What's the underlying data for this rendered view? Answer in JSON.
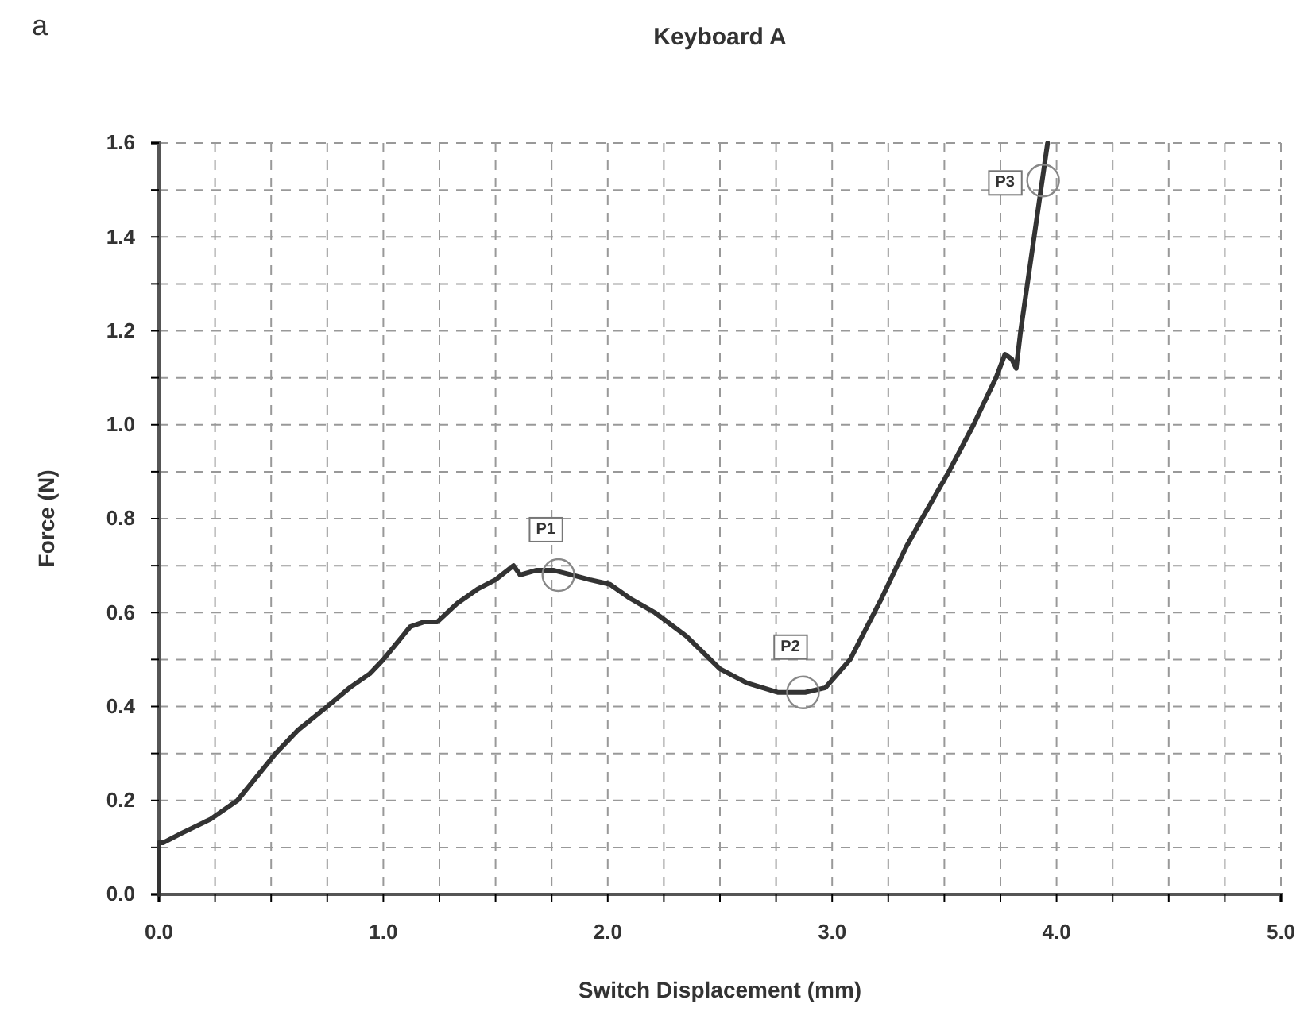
{
  "chart_data": {
    "type": "line",
    "title": "Keyboard A",
    "xlabel": "Switch Displacement (mm)",
    "ylabel": "Force (N)",
    "xlim": [
      0,
      5
    ],
    "ylim": [
      0,
      1.6
    ],
    "xticks": [
      {
        "value": 0,
        "label": "0.0"
      },
      {
        "value": 0.25,
        "label": null
      },
      {
        "value": 0.5,
        "label": null
      },
      {
        "value": 0.75,
        "label": null
      },
      {
        "value": 1,
        "label": "1.0"
      },
      {
        "value": 1.25,
        "label": null
      },
      {
        "value": 1.5,
        "label": null
      },
      {
        "value": 1.75,
        "label": null
      },
      {
        "value": 2,
        "label": "2.0"
      },
      {
        "value": 2.25,
        "label": null
      },
      {
        "value": 2.5,
        "label": null
      },
      {
        "value": 2.75,
        "label": null
      },
      {
        "value": 3,
        "label": "3.0"
      },
      {
        "value": 3.25,
        "label": null
      },
      {
        "value": 3.5,
        "label": null
      },
      {
        "value": 3.75,
        "label": null
      },
      {
        "value": 4,
        "label": "4.0"
      },
      {
        "value": 4.25,
        "label": null
      },
      {
        "value": 4.5,
        "label": null
      },
      {
        "value": 4.75,
        "label": null
      },
      {
        "value": 5,
        "label": "5.0"
      }
    ],
    "yticks": [
      {
        "value": 0,
        "label": "0.0"
      },
      {
        "value": 0.1,
        "label": null
      },
      {
        "value": 0.2,
        "label": "0.2"
      },
      {
        "value": 0.3,
        "label": null
      },
      {
        "value": 0.4,
        "label": "0.4"
      },
      {
        "value": 0.5,
        "label": null
      },
      {
        "value": 0.6,
        "label": "0.6"
      },
      {
        "value": 0.7,
        "label": null
      },
      {
        "value": 0.8,
        "label": "0.8"
      },
      {
        "value": 0.9,
        "label": null
      },
      {
        "value": 1,
        "label": "1.0"
      },
      {
        "value": 1.1,
        "label": null
      },
      {
        "value": 1.2,
        "label": "1.2"
      },
      {
        "value": 1.3,
        "label": null
      },
      {
        "value": 1.4,
        "label": "1.4"
      },
      {
        "value": 1.5,
        "label": null
      },
      {
        "value": 1.6,
        "label": "1.6"
      }
    ],
    "grid": true,
    "marker": "none",
    "line_style": "solid",
    "series": [
      {
        "color": "#333333",
        "x": [
          0,
          0,
          0.02,
          0.1,
          0.23,
          0.35,
          0.52,
          0.62,
          0.75,
          0.85,
          0.94,
          1.0,
          1.12,
          1.18,
          1.24,
          1.33,
          1.42,
          1.5,
          1.58,
          1.61,
          1.68,
          1.76,
          1.84,
          1.92,
          2.01,
          2.1,
          2.21,
          2.35,
          2.5,
          2.62,
          2.76,
          2.88,
          2.97,
          3.08,
          3.22,
          3.33,
          3.4,
          3.52,
          3.63,
          3.73,
          3.77,
          3.8,
          3.82,
          3.84,
          3.87,
          3.93,
          3.96
        ],
        "values": [
          0,
          0.11,
          0.11,
          0.13,
          0.16,
          0.2,
          0.3,
          0.35,
          0.4,
          0.44,
          0.47,
          0.5,
          0.57,
          0.58,
          0.58,
          0.62,
          0.65,
          0.67,
          0.7,
          0.68,
          0.69,
          0.69,
          0.68,
          0.67,
          0.66,
          0.63,
          0.6,
          0.55,
          0.48,
          0.45,
          0.43,
          0.43,
          0.44,
          0.5,
          0.63,
          0.74,
          0.8,
          0.9,
          1.0,
          1.1,
          1.15,
          1.14,
          1.12,
          1.2,
          1.3,
          1.5,
          1.6
        ]
      }
    ],
    "annotations": [
      "a",
      {
        "text": "P1",
        "x": 1.78,
        "y": 0.68
      },
      {
        "text": "P2",
        "x": 2.87,
        "y": 0.43
      },
      {
        "text": "P3",
        "x": 3.94,
        "y": 1.52
      }
    ]
  }
}
